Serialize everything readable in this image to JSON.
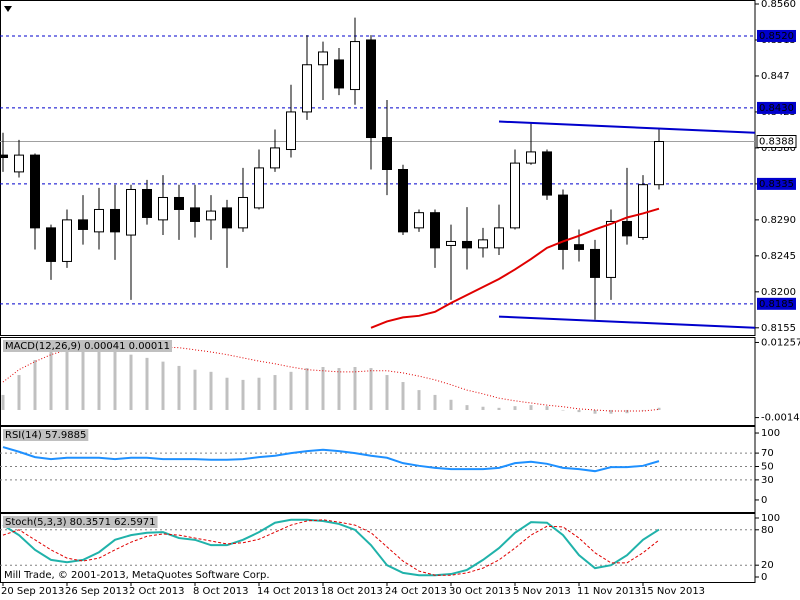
{
  "chart_data": [
    {
      "type": "candlestick",
      "categories": [
        "20 Sep 2013",
        null,
        null,
        null,
        "26 Sep 2013",
        null,
        null,
        null,
        "2 Oct 2013",
        null,
        null,
        null,
        "8 Oct 2013",
        null,
        null,
        null,
        "14 Oct 2013",
        null,
        null,
        null,
        "18 Oct 2013",
        null,
        null,
        null,
        "24 Oct 2013",
        null,
        null,
        null,
        "30 Oct 2013",
        null,
        null,
        null,
        "5 Nov 2013",
        null,
        null,
        null,
        "11 Nov 2013",
        null,
        null,
        null,
        "15 Nov 2013",
        null
      ],
      "open": [
        0.8371,
        0.835,
        0.8371,
        0.828,
        0.8238,
        0.829,
        0.8275,
        0.8303,
        0.8271,
        0.8328,
        0.829,
        0.8318,
        0.8305,
        0.829,
        0.8305,
        0.828,
        0.8305,
        0.8355,
        0.8378,
        0.8425,
        0.8484,
        0.849,
        0.8453,
        0.8515,
        0.8393,
        0.8353,
        0.828,
        0.8299,
        0.8258,
        0.8263,
        0.8255,
        0.8255,
        0.828,
        0.8361,
        0.8375,
        0.8321,
        0.8259,
        0.8253,
        0.8218,
        0.8288,
        0.8268,
        0.8334
      ],
      "high": [
        0.8399,
        0.839,
        0.8373,
        0.8284,
        0.8303,
        0.8321,
        0.833,
        0.8334,
        0.8334,
        0.834,
        0.8346,
        0.8334,
        0.8334,
        0.8321,
        0.8315,
        0.8355,
        0.8378,
        0.8403,
        0.8459,
        0.8521,
        0.8513,
        0.8505,
        0.8543,
        0.8521,
        0.844,
        0.8359,
        0.8303,
        0.8303,
        0.8284,
        0.8306,
        0.828,
        0.8309,
        0.8378,
        0.8411,
        0.8378,
        0.8328,
        0.8278,
        0.8265,
        0.8303,
        0.8355,
        0.8346,
        0.8403
      ],
      "low": [
        0.835,
        0.8343,
        0.8253,
        0.8215,
        0.823,
        0.8259,
        0.8253,
        0.824,
        0.819,
        0.8284,
        0.8271,
        0.8265,
        0.8268,
        0.8265,
        0.823,
        0.8275,
        0.8303,
        0.835,
        0.8368,
        0.8415,
        0.844,
        0.8446,
        0.8434,
        0.8353,
        0.8321,
        0.8271,
        0.8275,
        0.823,
        0.819,
        0.8228,
        0.8243,
        0.8246,
        0.8278,
        0.8359,
        0.8315,
        0.8228,
        0.8238,
        0.8165,
        0.819,
        0.8259,
        0.8265,
        0.8328
      ],
      "close": [
        0.8368,
        0.8371,
        0.828,
        0.8238,
        0.829,
        0.8278,
        0.8303,
        0.8275,
        0.8328,
        0.8293,
        0.8318,
        0.8303,
        0.8288,
        0.8301,
        0.828,
        0.8318,
        0.8355,
        0.838,
        0.8425,
        0.8484,
        0.85,
        0.8455,
        0.8513,
        0.8393,
        0.8353,
        0.8275,
        0.8299,
        0.8255,
        0.8263,
        0.8255,
        0.8265,
        0.828,
        0.8361,
        0.8375,
        0.8321,
        0.8253,
        0.8253,
        0.8218,
        0.8288,
        0.827,
        0.8334,
        0.8388
      ],
      "series": [
        {
          "color": "#e00000",
          "style": "solid",
          "values": [
            null,
            null,
            null,
            null,
            null,
            null,
            null,
            null,
            null,
            null,
            null,
            null,
            null,
            null,
            null,
            null,
            null,
            null,
            null,
            null,
            null,
            null,
            null,
            0.8155,
            0.8163,
            0.8168,
            0.817,
            0.8175,
            0.8186,
            0.8196,
            0.8206,
            0.8216,
            0.8228,
            0.8241,
            0.8255,
            0.8263,
            0.827,
            0.8278,
            0.8285,
            0.8293,
            0.8298,
            0.8304
          ]
        }
      ],
      "trendlines": [
        {
          "x": [
            31,
            47
          ],
          "y": [
            0.8413,
            0.8399
          ]
        },
        {
          "x": [
            31,
            47
          ],
          "y": [
            0.8169,
            0.8155
          ]
        }
      ],
      "trendline_color": "#0000cc",
      "levels": [
        {
          "value": 0.852,
          "label": "0.8520"
        },
        {
          "value": 0.843,
          "label": "0.8430"
        },
        {
          "value": 0.8335,
          "label": "0.8335"
        },
        {
          "value": 0.8185,
          "label": "0.8185"
        }
      ],
      "level_color": "#0000cc",
      "price_line": {
        "value": 0.8388,
        "label": "0.8388"
      },
      "ylim": [
        0.8146,
        0.8565
      ],
      "yticks": [
        {
          "value": 0.856,
          "label": "0.8560"
        },
        0.8515,
        0.847,
        0.8425,
        {
          "value": 0.838,
          "label": "0.8380"
        },
        0.8335,
        {
          "value": 0.829,
          "label": "0.8290"
        },
        0.8245,
        {
          "value": 0.82,
          "label": "0.8200"
        },
        0.8155
      ]
    },
    {
      "type": "bar",
      "title": "MACD(12,26,9) 0.00041 0.00011",
      "series": [
        {
          "color": "#c0c0c0",
          "style": "bar",
          "values": [
            0.0028,
            0.0065,
            0.0093,
            0.0108,
            0.0112,
            0.0112,
            0.0112,
            0.0112,
            0.0103,
            0.0097,
            0.009,
            0.0082,
            0.0075,
            0.0071,
            0.006,
            0.0056,
            0.006,
            0.0065,
            0.0071,
            0.0078,
            0.008,
            0.0078,
            0.008,
            0.0078,
            0.0065,
            0.0052,
            0.0037,
            0.0028,
            0.0019,
            0.0009,
            0.0006,
            0.0004,
            0.0007,
            0.0009,
            0.0007,
            0.0,
            -0.0004,
            -0.0007,
            -0.0007,
            -0.0006,
            0.0,
            0.00041
          ]
        },
        {
          "color": "#e00000",
          "style": "dotted",
          "values": [
            0.0052,
            0.0075,
            0.009,
            0.0103,
            0.0112,
            0.0117,
            0.0121,
            0.0121,
            0.0121,
            0.0119,
            0.0117,
            0.0116,
            0.0112,
            0.0108,
            0.0103,
            0.0097,
            0.0091,
            0.0086,
            0.008,
            0.0075,
            0.0073,
            0.0071,
            0.0071,
            0.0073,
            0.0073,
            0.0069,
            0.0063,
            0.0056,
            0.0047,
            0.0037,
            0.003,
            0.0022,
            0.0017,
            0.0013,
            0.0009,
            0.0006,
            0.0002,
            0.0,
            -0.0002,
            -0.0002,
            -0.0002,
            0.00011
          ]
        }
      ],
      "ylim": [
        -0.0028,
        0.0134
      ],
      "yticks": [
        0.01257,
        -0.00142
      ]
    },
    {
      "type": "line",
      "title": "RSI(14) 57.9885",
      "series": [
        {
          "color": "#1e90ff",
          "style": "solid",
          "values": [
            79,
            72,
            64,
            61,
            63,
            63,
            63,
            61,
            63,
            63,
            61,
            61,
            61,
            60,
            60,
            61,
            64,
            66,
            70,
            73,
            75,
            73,
            70,
            66,
            63,
            55,
            51,
            48,
            46,
            46,
            46,
            48,
            55,
            57,
            54,
            48,
            46,
            43,
            49,
            49,
            51,
            57.9885
          ]
        }
      ],
      "levels": [
        70,
        50,
        30
      ],
      "ylim": [
        -18,
        109
      ],
      "yticks": [
        100,
        70,
        50,
        30,
        0
      ]
    },
    {
      "type": "line",
      "title": "Stoch(5,3,3) 80.3571 62.5971",
      "note": "Mill Trade, © 2001-2013, MetaQuotes Software Corp.",
      "series": [
        {
          "color": "#20b2aa",
          "style": "solid",
          "values": [
            88,
            71,
            46,
            29,
            25,
            29,
            42,
            63,
            71,
            75,
            76,
            66,
            63,
            54,
            54,
            63,
            76,
            92,
            97,
            97,
            95,
            90,
            80,
            54,
            20,
            7,
            3,
            3,
            5,
            12,
            29,
            49,
            75,
            93,
            92,
            71,
            37,
            15,
            20,
            37,
            63,
            80.3571
          ]
        },
        {
          "color": "#e00000",
          "style": "dashed",
          "values": [
            71,
            80,
            63,
            46,
            32,
            27,
            32,
            46,
            59,
            69,
            73,
            71,
            66,
            61,
            56,
            58,
            64,
            76,
            88,
            95,
            97,
            93,
            88,
            75,
            51,
            27,
            10,
            3,
            3,
            7,
            15,
            29,
            49,
            71,
            86,
            85,
            66,
            41,
            24,
            24,
            41,
            62.5971
          ]
        }
      ],
      "levels": [
        80,
        20
      ],
      "ylim": [
        -8.5,
        106.8
      ],
      "yticks": [
        100,
        80,
        20,
        0
      ]
    }
  ]
}
